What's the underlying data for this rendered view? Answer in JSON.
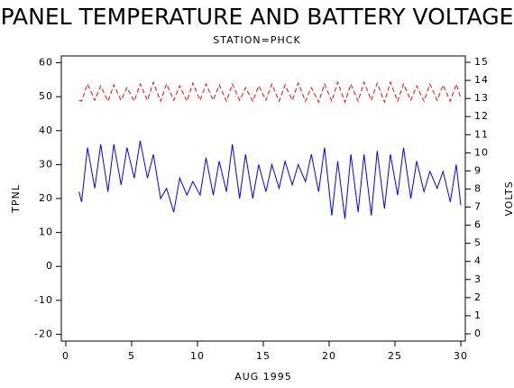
{
  "chart_data": {
    "type": "line",
    "title": "PANEL TEMPERATURE AND BATTERY VOLTAGE",
    "subtitle": "STATION=PHCK",
    "x_label": "AUG 1995",
    "y_label": "TPNL",
    "y2_label": "VOLTS",
    "x": [
      1.0,
      1.2,
      1.65,
      2.2,
      2.65,
      3.2,
      3.65,
      4.2,
      4.65,
      5.2,
      5.65,
      6.2,
      6.65,
      7.2,
      7.65,
      8.2,
      8.65,
      9.2,
      9.65,
      10.2,
      10.65,
      11.2,
      11.65,
      12.2,
      12.65,
      13.2,
      13.65,
      14.2,
      14.65,
      15.2,
      15.65,
      16.2,
      16.65,
      17.2,
      17.65,
      18.2,
      18.65,
      19.2,
      19.65,
      20.2,
      20.65,
      21.2,
      21.65,
      22.2,
      22.65,
      23.2,
      23.65,
      24.2,
      24.65,
      25.2,
      25.65,
      26.2,
      26.65,
      27.2,
      27.65,
      28.2,
      28.65,
      29.2,
      29.65,
      30.0
    ],
    "series": [
      {
        "color": "#0000ff",
        "dash": false,
        "values": [
          22,
          19,
          35,
          23,
          36,
          22,
          36,
          24,
          35,
          26,
          37,
          26,
          33,
          20,
          23,
          16,
          26,
          21,
          25,
          21,
          32,
          21,
          31,
          22,
          36,
          20,
          33,
          20,
          30,
          22,
          30,
          23,
          31,
          24,
          30,
          25,
          33,
          22,
          35,
          15,
          31,
          14,
          33,
          16,
          33,
          15,
          34,
          17,
          33,
          21,
          35,
          20,
          31,
          22,
          28,
          23,
          28,
          19,
          30,
          18
        ]
      },
      {
        "color": "#ff0000",
        "dash": true,
        "axis": "y2",
        "values": [
          12.9,
          12.85,
          13.8,
          12.9,
          13.7,
          12.85,
          13.75,
          12.9,
          13.6,
          12.85,
          13.8,
          12.9,
          13.9,
          12.85,
          13.8,
          12.9,
          13.7,
          12.85,
          13.85,
          12.9,
          13.8,
          12.9,
          13.75,
          12.85,
          13.8,
          12.9,
          13.6,
          12.85,
          13.7,
          12.9,
          13.8,
          12.85,
          13.75,
          12.9,
          13.85,
          12.85,
          13.6,
          12.8,
          13.8,
          12.85,
          13.9,
          12.8,
          13.8,
          12.85,
          13.9,
          12.9,
          13.85,
          12.8,
          13.9,
          12.85,
          13.8,
          12.9,
          13.7,
          12.85,
          13.8,
          12.9,
          13.75,
          12.85,
          13.8,
          13.0
        ]
      }
    ],
    "xlim": [
      -0.34,
      30.34
    ],
    "xticks": [
      0,
      5,
      10,
      15,
      20,
      25,
      30
    ],
    "ylim": [
      -22,
      62
    ],
    "yticks": [
      -20,
      -10,
      0,
      10,
      20,
      30,
      40,
      50,
      60
    ],
    "y2lim": [
      -0.4,
      15.35
    ],
    "y2ticks": [
      0,
      1,
      2,
      3,
      4,
      5,
      6,
      7,
      8,
      9,
      10,
      11,
      12,
      13,
      14,
      15
    ]
  }
}
